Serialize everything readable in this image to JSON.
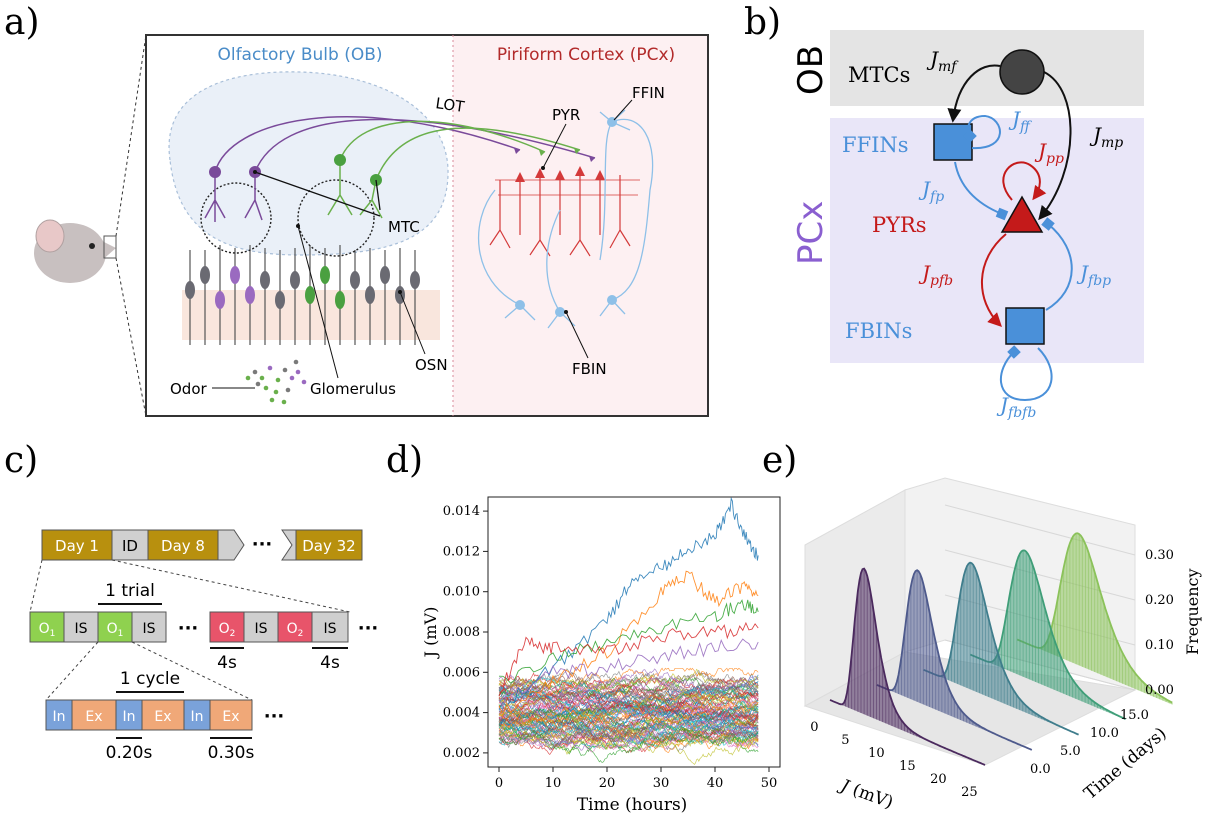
{
  "panel_labels": {
    "a": "a)",
    "b": "b)",
    "c": "c)",
    "d": "d)",
    "e": "e)"
  },
  "panel_a": {
    "ob_title": "Olfactory Bulb (OB)",
    "pcx_title": "Piriform Cortex (PCx)",
    "labels": {
      "lot": "LOT",
      "pyr": "PYR",
      "ffin": "FFIN",
      "mtc": "MTC",
      "osn": "OSN",
      "odor": "Odor",
      "glomerulus": "Glomerulus",
      "fbin": "FBIN"
    },
    "colors": {
      "ob": "#4a8cc8",
      "pcx": "#b22a2a",
      "purple": "#7a4a9a",
      "green": "#6ab04c",
      "pyr": "#d43a3a",
      "interneuron": "#8ec0e8",
      "grey": "#6a6a72"
    }
  },
  "panel_b": {
    "ob_label": "OB",
    "pcx_label": "PCx",
    "mtcs": "MTCs",
    "ffins": "FFINs",
    "pyrs": "PYRs",
    "fbins": "FBINs",
    "j": {
      "mf": "mf",
      "ff": "ff",
      "mp": "mp",
      "pp": "pp",
      "fp": "fp",
      "pfb": "pfb",
      "fbp": "fbp",
      "fbfb": "fbfb"
    },
    "colors": {
      "blue": "#4a90d9",
      "red": "#c41a1a",
      "purple": "#8a5fd0",
      "ob_band": "#e4e4e4",
      "pcx_band": "#e9e6f8"
    }
  },
  "panel_c": {
    "days": [
      "Day 1",
      "ID",
      "Day 8",
      "Day 32"
    ],
    "dots": "···",
    "trial_label": "1 trial",
    "odor": "O",
    "odor_sub1": "1",
    "odor_sub2": "2",
    "is": "IS",
    "dur_4s": "4s",
    "cycle_label": "1 cycle",
    "inh": "In",
    "exh": "Ex",
    "dur_in": "0.20s",
    "dur_ex": "0.30s",
    "colors": {
      "day": "#b8900e",
      "id": "#d0d0d0",
      "o1": "#8fd14f",
      "o2": "#e8546a",
      "is": "#cfcfcf",
      "in": "#7aa2da",
      "ex": "#f0a878"
    }
  },
  "chart_data": [
    {
      "type": "line",
      "title": "",
      "xlabel": "Time (hours)",
      "ylabel": "J (mV)",
      "xlim": [
        0,
        50
      ],
      "ylim": [
        0.0013,
        0.0147
      ],
      "xticks": [
        "0",
        "10",
        "20",
        "30",
        "40",
        "50"
      ],
      "yticks": [
        "0.002",
        "0.004",
        "0.006",
        "0.008",
        "0.010",
        "0.012",
        "0.014"
      ],
      "series_count": 100,
      "x_range_hours": [
        0,
        48
      ],
      "highlight_series": [
        {
          "x": [
            0,
            10,
            20,
            25,
            30,
            35,
            40,
            43,
            46,
            48
          ],
          "values": [
            0.0042,
            0.0062,
            0.0085,
            0.0108,
            0.0112,
            0.012,
            0.0128,
            0.0143,
            0.0125,
            0.0118
          ]
        },
        {
          "x": [
            0,
            10,
            20,
            30,
            35,
            40,
            45,
            48
          ],
          "values": [
            0.004,
            0.0055,
            0.007,
            0.01,
            0.0108,
            0.0095,
            0.0102,
            0.0098
          ]
        },
        {
          "x": [
            0,
            10,
            20,
            30,
            40,
            45,
            48
          ],
          "values": [
            0.0055,
            0.0068,
            0.0075,
            0.0082,
            0.0088,
            0.0094,
            0.009
          ]
        },
        {
          "x": [
            0,
            5,
            10,
            20,
            30,
            40,
            48
          ],
          "values": [
            0.005,
            0.0075,
            0.0072,
            0.007,
            0.0078,
            0.008,
            0.0082
          ]
        },
        {
          "x": [
            0,
            10,
            20,
            30,
            40,
            48
          ],
          "values": [
            0.0045,
            0.006,
            0.0062,
            0.0068,
            0.0072,
            0.0075
          ]
        }
      ],
      "bulk_band": [
        0.0014,
        0.0062
      ]
    },
    {
      "type": "3d-histogram",
      "title": "",
      "xlabel": "J (mV)",
      "ylabel": "Time (days)",
      "zlabel": "Frequency",
      "xticks": [
        "0",
        "5",
        "10",
        "15",
        "20",
        "25"
      ],
      "yticks": [
        "0.0",
        "5.0",
        "10.0",
        "15.0"
      ],
      "zticks": [
        "0.00",
        "0.10",
        "0.20",
        "0.30"
      ],
      "series": [
        {
          "name": "",
          "peak_j": 5,
          "peak_freq": 0.31
        },
        {
          "name": "",
          "peak_j": 6,
          "peak_freq": 0.28
        },
        {
          "name": "",
          "peak_j": 7,
          "peak_freq": 0.27
        },
        {
          "name": "",
          "peak_j": 8,
          "peak_freq": 0.27
        },
        {
          "name": "",
          "peak_j": 9,
          "peak_freq": 0.28
        }
      ],
      "colors": [
        "#4b2a5e",
        "#4e5a8c",
        "#3f7d8c",
        "#3f9e78",
        "#8bc25a"
      ]
    }
  ]
}
